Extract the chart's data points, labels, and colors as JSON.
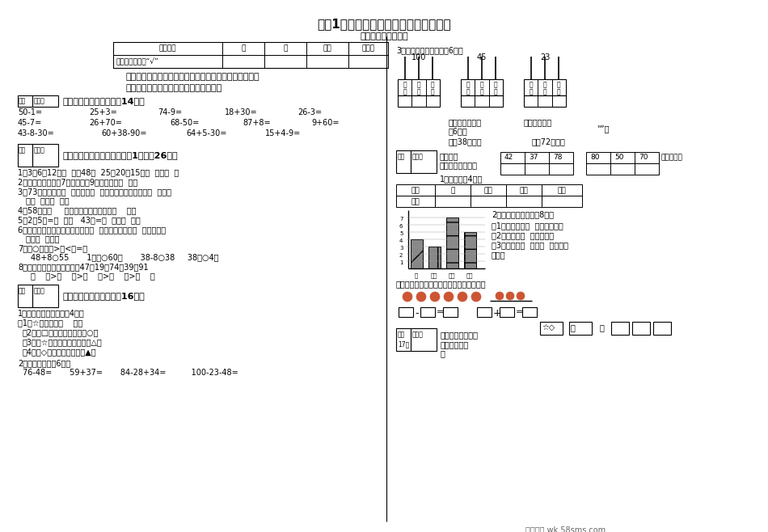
{
  "title": "小学1年级数学期末质量检测试题（卷）",
  "subtitle": "群众路小学：张亚梅",
  "bg_color": "#ffffff",
  "footer": "五八文库 wk.58sms.com",
  "row2_label": "在相应等级上划“√”",
  "rating_cols": [
    "评价等级",
    "优",
    "良",
    "达标",
    "待达标"
  ],
  "rating_col_widths": [
    135,
    52,
    52,
    52,
    49
  ]
}
